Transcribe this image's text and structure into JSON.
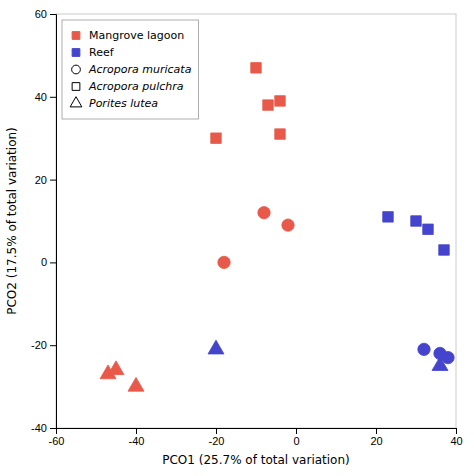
{
  "chart_data": {
    "type": "scatter",
    "xlabel": "PCO1 (25.7% of total variation)",
    "ylabel": "PCO2 (17.5% of total variation)",
    "xlim": [
      -60,
      40
    ],
    "ylim": [
      -40,
      60
    ],
    "xticks": [
      -60,
      -40,
      -20,
      0,
      20,
      40
    ],
    "yticks": [
      -40,
      -20,
      0,
      20,
      40,
      60
    ],
    "legend": "upper left",
    "series": [
      {
        "color": "#E8594A",
        "marker": "square",
        "x": [
          -20,
          -10,
          -7,
          -4,
          -4
        ],
        "values": [
          30,
          47,
          38,
          39,
          31
        ]
      },
      {
        "color": "#E8594A",
        "marker": "circle",
        "x": [
          -18,
          -8,
          -2
        ],
        "values": [
          0,
          12,
          9
        ]
      },
      {
        "color": "#E8594A",
        "marker": "triangle",
        "x": [
          -47,
          -45,
          -40
        ],
        "values": [
          -27,
          -26,
          -30
        ]
      },
      {
        "color": "#4444CC",
        "marker": "square",
        "x": [
          23,
          30,
          33,
          37
        ],
        "values": [
          11,
          10,
          8,
          3
        ]
      },
      {
        "color": "#4444CC",
        "marker": "circle",
        "x": [
          32,
          36,
          38
        ],
        "values": [
          -21,
          -22,
          -23
        ]
      },
      {
        "color": "#4444CC",
        "marker": "triangle",
        "x": [
          -20,
          36
        ],
        "values": [
          -21,
          -25
        ]
      }
    ],
    "legend_entries": [
      {
        "label": "Mangrove lagoon",
        "color": "#E8594A",
        "marker": "square"
      },
      {
        "label": "Reef",
        "color": "#4444CC",
        "marker": "square"
      },
      {
        "label": "Acropora muricata",
        "marker": "circle"
      },
      {
        "label": "Acropora pulchra",
        "marker": "square"
      },
      {
        "label": "Porites lutea",
        "marker": "triangle"
      }
    ]
  }
}
